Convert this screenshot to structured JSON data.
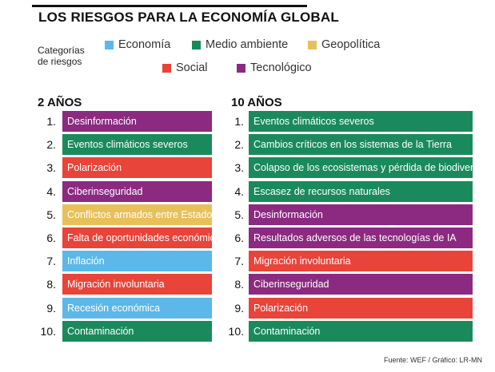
{
  "title": "LOS RIESGOS PARA LA ECONOMÍA GLOBAL",
  "legend": {
    "label_line1": "Categorías",
    "label_line2": "de riesgos",
    "items": [
      {
        "key": "economia",
        "label": "Economía",
        "color": "#5bb8e8"
      },
      {
        "key": "medio",
        "label": "Medio ambiente",
        "color": "#1a8a5c"
      },
      {
        "key": "geo",
        "label": "Geopolítica",
        "color": "#e8c05a"
      },
      {
        "key": "social",
        "label": "Social",
        "color": "#e8443a"
      },
      {
        "key": "tec",
        "label": "Tecnológico",
        "color": "#8b2a80"
      }
    ]
  },
  "chart_data": {
    "type": "table",
    "title": "LOS RIESGOS PARA LA ECONOMÍA GLOBAL",
    "columns": [
      {
        "heading": "2 AÑOS",
        "rows": [
          {
            "rank": "1.",
            "label": "Desinformación",
            "category": "tec"
          },
          {
            "rank": "2.",
            "label": "Eventos climáticos severos",
            "category": "medio"
          },
          {
            "rank": "3.",
            "label": "Polarización",
            "category": "social"
          },
          {
            "rank": "4.",
            "label": "Ciberinseguridad",
            "category": "tec"
          },
          {
            "rank": "5.",
            "label": "Conflictos armados entre Estados",
            "category": "geo"
          },
          {
            "rank": "6.",
            "label": "Falta de oportunidades económicas",
            "category": "social"
          },
          {
            "rank": "7.",
            "label": "Inflación",
            "category": "economia"
          },
          {
            "rank": "8.",
            "label": "Migración involuntaria",
            "category": "social"
          },
          {
            "rank": "9.",
            "label": "Recesión económica",
            "category": "economia"
          },
          {
            "rank": "10.",
            "label": "Contaminación",
            "category": "medio"
          }
        ]
      },
      {
        "heading": "10 AÑOS",
        "rows": [
          {
            "rank": "1.",
            "label": "Eventos climáticos severos",
            "category": "medio"
          },
          {
            "rank": "2.",
            "label": "Cambios críticos en los sistemas de la Tierra",
            "category": "medio"
          },
          {
            "rank": "3.",
            "label": "Colapso de los ecosistemas y pérdida de biodiversidad",
            "category": "medio"
          },
          {
            "rank": "4.",
            "label": "Escasez de recursos naturales",
            "category": "medio"
          },
          {
            "rank": "5.",
            "label": "Desinformación",
            "category": "tec"
          },
          {
            "rank": "6.",
            "label": "Resultados adversos de las tecnologías de IA",
            "category": "tec"
          },
          {
            "rank": "7.",
            "label": "Migración involuntaria",
            "category": "social"
          },
          {
            "rank": "8.",
            "label": "Ciberinseguridad",
            "category": "tec"
          },
          {
            "rank": "9.",
            "label": "Polarización",
            "category": "social"
          },
          {
            "rank": "10.",
            "label": "Contaminación",
            "category": "medio"
          }
        ]
      }
    ]
  },
  "source": "Fuente: WEF / Gráfico: LR-MN"
}
